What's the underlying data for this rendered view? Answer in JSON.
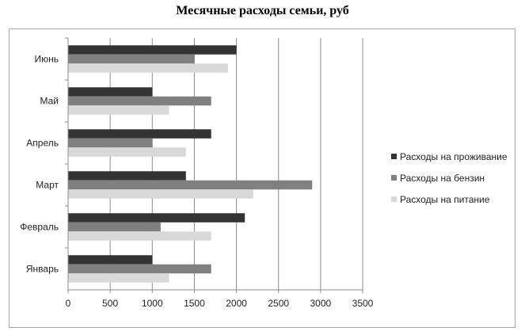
{
  "chart_data": {
    "type": "bar",
    "orientation": "horizontal",
    "title": "Месячные расходы семьи, руб",
    "categories": [
      "Январь",
      "Февраль",
      "Март",
      "Апрель",
      "Май",
      "Июнь"
    ],
    "series": [
      {
        "name": "Расходы на проживание",
        "color": "#333333",
        "values": [
          1000,
          2100,
          1400,
          1700,
          1000,
          2000
        ]
      },
      {
        "name": "Расходы на бензин",
        "color": "#808080",
        "values": [
          1700,
          1100,
          2900,
          1000,
          1700,
          1500
        ]
      },
      {
        "name": "Расходы на питание",
        "color": "#d9d9d9",
        "values": [
          1200,
          1700,
          2200,
          1400,
          1200,
          1900
        ]
      }
    ],
    "xlim": [
      0,
      3500
    ],
    "xticks": [
      0,
      500,
      1000,
      1500,
      2000,
      2500,
      3000,
      3500
    ],
    "grid": "vertical",
    "legend_position": "right"
  }
}
